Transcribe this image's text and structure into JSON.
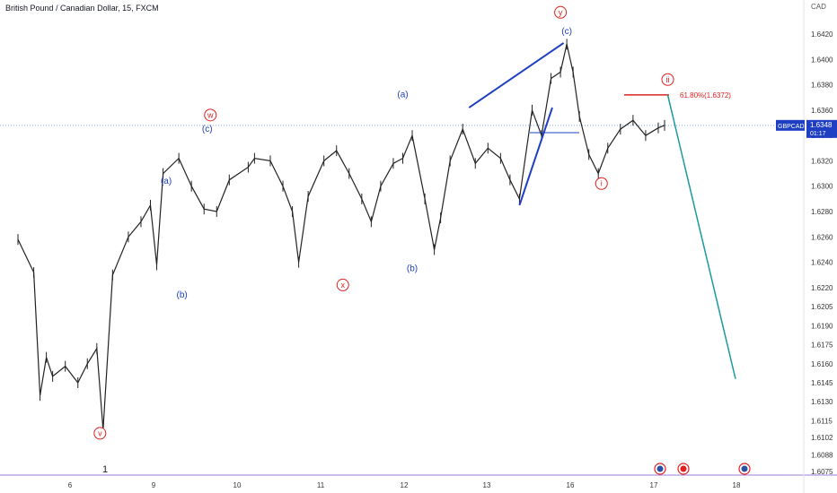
{
  "chart_data": {
    "type": "candlestick",
    "title": "British Pound / Canadian Dollar, 15, FXCM",
    "unit": "CAD",
    "symbol": "GBPCAD",
    "last_price": "1.6348",
    "countdown": "01:17",
    "y_ticks": [
      "1.6420",
      "1.6400",
      "1.6380",
      "1.6360",
      "1.6340",
      "1.6320",
      "1.6300",
      "1.6280",
      "1.6260",
      "1.6240",
      "1.6220",
      "1.6205",
      "1.6190",
      "1.6175",
      "1.6160",
      "1.6145",
      "1.6130",
      "1.6115",
      "1.6102",
      "1.6088",
      "1.6075"
    ],
    "x_ticks": [
      "6",
      "9",
      "10",
      "11",
      "12",
      "13",
      "16",
      "17",
      "18"
    ],
    "bottom_marker": "1",
    "price_series": [
      {
        "x": 5.25,
        "y": 1.6258
      },
      {
        "x": 5.5,
        "y": 1.6232
      },
      {
        "x": 5.6,
        "y": 1.6135
      },
      {
        "x": 5.7,
        "y": 1.6165
      },
      {
        "x": 5.8,
        "y": 1.615
      },
      {
        "x": 6.0,
        "y": 1.6158
      },
      {
        "x": 6.2,
        "y": 1.6145
      },
      {
        "x": 6.35,
        "y": 1.616
      },
      {
        "x": 6.5,
        "y": 1.6172
      },
      {
        "x": 6.6,
        "y": 1.6108
      },
      {
        "x": 6.75,
        "y": 1.623
      },
      {
        "x": 7.0,
        "y": 1.626
      },
      {
        "x": 7.2,
        "y": 1.6272
      },
      {
        "x": 7.35,
        "y": 1.6285
      },
      {
        "x": 7.45,
        "y": 1.6238
      },
      {
        "x": 7.55,
        "y": 1.631
      },
      {
        "x": 7.8,
        "y": 1.6322
      },
      {
        "x": 8.0,
        "y": 1.63
      },
      {
        "x": 8.2,
        "y": 1.6282
      },
      {
        "x": 8.4,
        "y": 1.628
      },
      {
        "x": 8.6,
        "y": 1.6305
      },
      {
        "x": 8.9,
        "y": 1.6315
      },
      {
        "x": 9.0,
        "y": 1.6322
      },
      {
        "x": 9.25,
        "y": 1.632
      },
      {
        "x": 9.45,
        "y": 1.63
      },
      {
        "x": 9.6,
        "y": 1.628
      },
      {
        "x": 9.7,
        "y": 1.624
      },
      {
        "x": 9.85,
        "y": 1.6292
      },
      {
        "x": 10.1,
        "y": 1.632
      },
      {
        "x": 10.3,
        "y": 1.6328
      },
      {
        "x": 10.5,
        "y": 1.631
      },
      {
        "x": 10.7,
        "y": 1.629
      },
      {
        "x": 10.85,
        "y": 1.6272
      },
      {
        "x": 11.0,
        "y": 1.63
      },
      {
        "x": 11.2,
        "y": 1.6318
      },
      {
        "x": 11.35,
        "y": 1.6322
      },
      {
        "x": 11.5,
        "y": 1.634
      },
      {
        "x": 11.7,
        "y": 1.629
      },
      {
        "x": 11.85,
        "y": 1.625
      },
      {
        "x": 11.95,
        "y": 1.6275
      },
      {
        "x": 12.1,
        "y": 1.632
      },
      {
        "x": 12.3,
        "y": 1.6345
      },
      {
        "x": 12.5,
        "y": 1.6318
      },
      {
        "x": 12.7,
        "y": 1.633
      },
      {
        "x": 12.9,
        "y": 1.6322
      },
      {
        "x": 13.05,
        "y": 1.6305
      },
      {
        "x": 13.2,
        "y": 1.629
      },
      {
        "x": 13.4,
        "y": 1.636
      },
      {
        "x": 13.55,
        "y": 1.634
      },
      {
        "x": 13.7,
        "y": 1.6385
      },
      {
        "x": 13.85,
        "y": 1.639
      },
      {
        "x": 13.95,
        "y": 1.6412
      },
      {
        "x": 14.05,
        "y": 1.639
      },
      {
        "x": 14.15,
        "y": 1.6355
      },
      {
        "x": 14.3,
        "y": 1.6325
      },
      {
        "x": 14.45,
        "y": 1.631
      },
      {
        "x": 14.6,
        "y": 1.633
      },
      {
        "x": 14.8,
        "y": 1.6345
      },
      {
        "x": 15.0,
        "y": 1.6352
      },
      {
        "x": 15.2,
        "y": 1.634
      },
      {
        "x": 15.4,
        "y": 1.6346
      },
      {
        "x": 15.5,
        "y": 1.6348
      }
    ],
    "wave_labels_blue": [
      {
        "text": "(a)",
        "x": 7.6,
        "y": 1.6302
      },
      {
        "text": "(b)",
        "x": 7.85,
        "y": 1.6212
      },
      {
        "text": "(c)",
        "x": 8.25,
        "y": 1.6343
      },
      {
        "text": "(a)",
        "x": 11.35,
        "y": 1.637
      },
      {
        "text": "(b)",
        "x": 11.5,
        "y": 1.6233
      },
      {
        "text": "(c)",
        "x": 13.95,
        "y": 1.642
      }
    ],
    "wave_labels_red": [
      {
        "text": "w",
        "x": 8.3,
        "y": 1.6354
      },
      {
        "text": "x",
        "x": 10.4,
        "y": 1.622
      },
      {
        "text": "y",
        "x": 13.85,
        "y": 1.6435
      },
      {
        "text": "v",
        "x": 6.55,
        "y": 1.6103
      },
      {
        "text": "i",
        "x": 14.5,
        "y": 1.63
      },
      {
        "text": "ii",
        "x": 15.55,
        "y": 1.6382
      }
    ],
    "fib_level": {
      "label": "61.80%(1.6372)",
      "value": 1.6372
    },
    "projection": [
      {
        "x": 15.55,
        "y": 1.6372
      },
      {
        "x": 17.2,
        "y": 1.6148
      }
    ],
    "wedge_lines": [
      [
        {
          "x": 12.4,
          "y": 1.6362
        },
        {
          "x": 13.9,
          "y": 1.6413
        }
      ],
      [
        {
          "x": 13.2,
          "y": 1.6285
        },
        {
          "x": 13.72,
          "y": 1.6362
        }
      ]
    ],
    "horizontal_ref": {
      "value": 1.6348,
      "style": "dotted"
    }
  },
  "footer_icons": [
    "uk-flag-icon",
    "canada-flag-icon",
    "uk-flag-icon"
  ]
}
